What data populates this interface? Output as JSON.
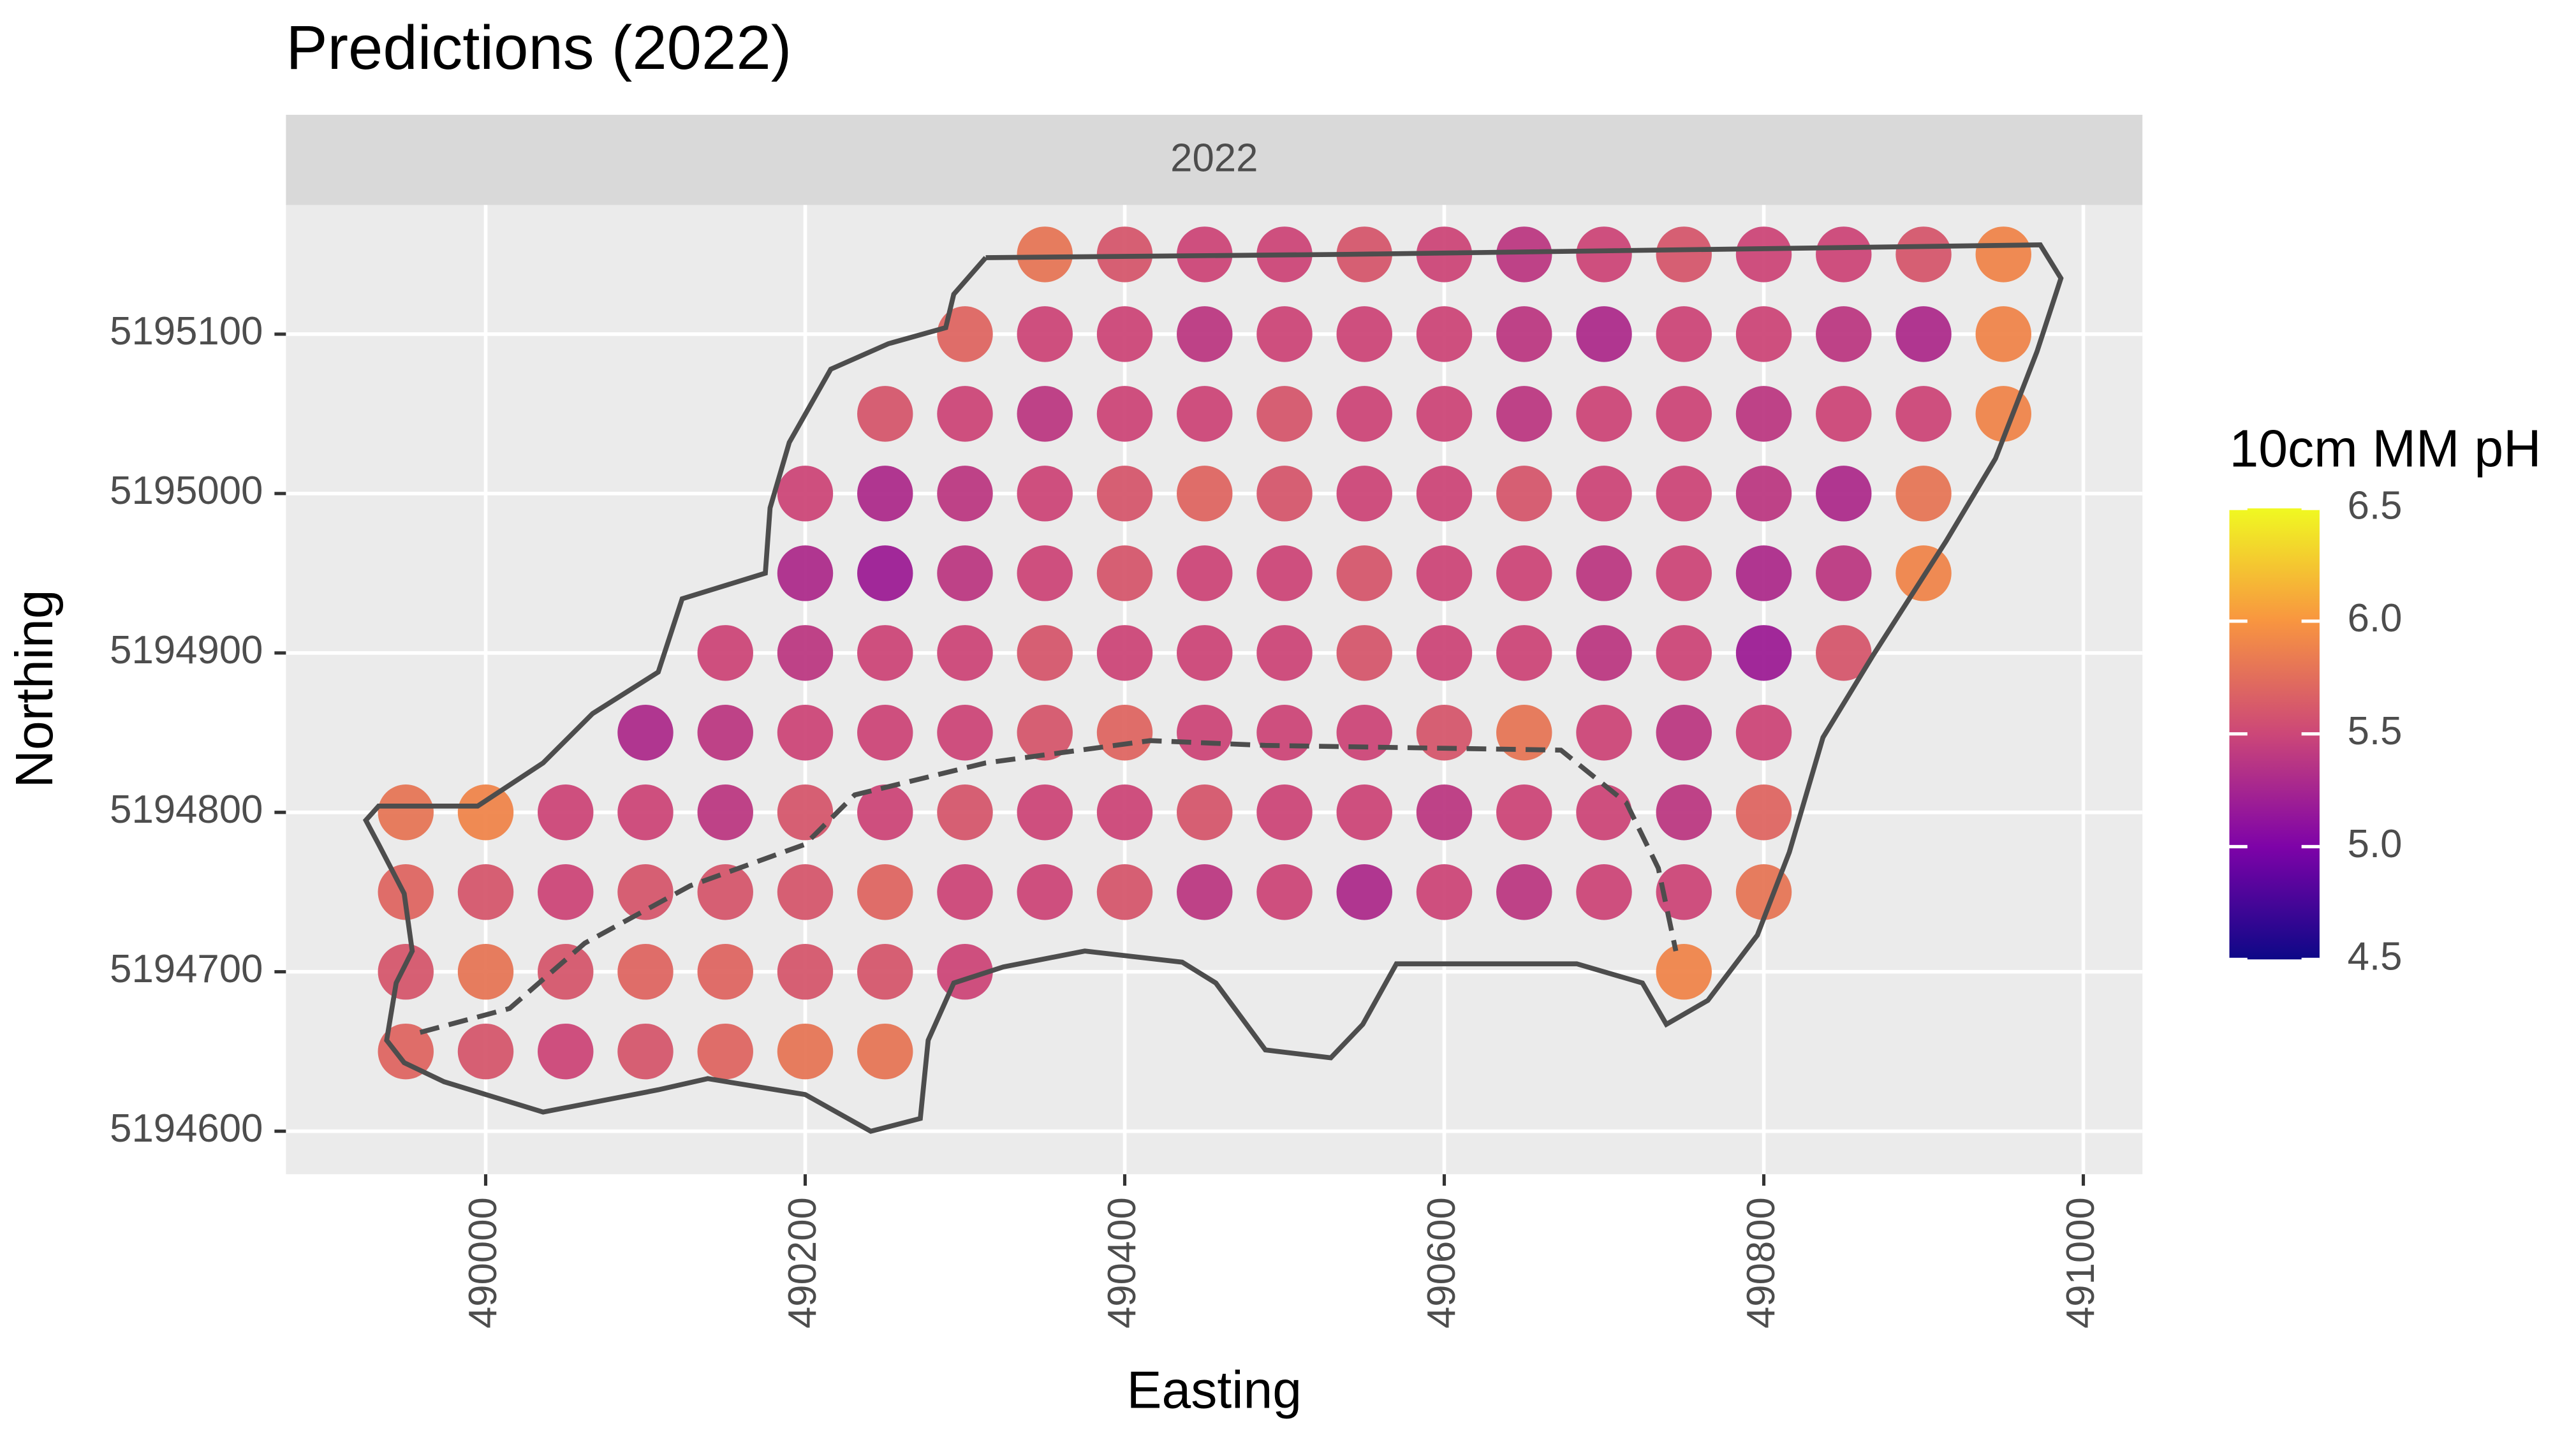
{
  "chart_data": {
    "type": "scatter",
    "title": "Predictions (2022)",
    "facet": "2022",
    "x_label": "Easting",
    "y_label": "Northing",
    "grid": true,
    "xlim": [
      489875,
      491037
    ],
    "ylim": [
      5194573,
      5195181
    ],
    "xticks": [
      490000,
      490200,
      490400,
      490600,
      490800,
      491000
    ],
    "yticks": [
      5194600,
      5194700,
      5194800,
      5194900,
      5195000,
      5195100
    ],
    "x": [
      490350,
      490400,
      490450,
      490500,
      490550,
      490600,
      490650,
      490700,
      490750,
      490800,
      490850,
      490900,
      490950,
      490300,
      490350,
      490400,
      490450,
      490500,
      490550,
      490600,
      490650,
      490700,
      490750,
      490800,
      490850,
      490900,
      490950,
      490250,
      490300,
      490350,
      490400,
      490450,
      490500,
      490550,
      490600,
      490650,
      490700,
      490750,
      490800,
      490850,
      490900,
      490950,
      490200,
      490250,
      490300,
      490350,
      490400,
      490450,
      490500,
      490550,
      490600,
      490650,
      490700,
      490750,
      490800,
      490850,
      490900,
      490200,
      490250,
      490300,
      490350,
      490400,
      490450,
      490500,
      490550,
      490600,
      490650,
      490700,
      490750,
      490800,
      490850,
      490900,
      490150,
      490200,
      490250,
      490300,
      490350,
      490400,
      490450,
      490500,
      490550,
      490600,
      490650,
      490700,
      490750,
      490800,
      490850,
      490100,
      490150,
      490200,
      490250,
      490300,
      490350,
      490400,
      490450,
      490500,
      490550,
      490600,
      490650,
      490700,
      490750,
      490800,
      489950,
      490000,
      490050,
      490100,
      490150,
      490200,
      490250,
      490300,
      490350,
      490400,
      490450,
      490500,
      490550,
      490600,
      490650,
      490700,
      490750,
      490800,
      489950,
      490000,
      490050,
      490100,
      490150,
      490200,
      490250,
      490300,
      490350,
      490400,
      490450,
      490500,
      490550,
      490600,
      490650,
      490700,
      490750,
      490800,
      489950,
      490000,
      490050,
      490100,
      490150,
      490200,
      490250,
      490300,
      490750,
      489950,
      490000,
      490050,
      490100,
      490150,
      490200,
      490250
    ],
    "y": [
      5195150,
      5195150,
      5195150,
      5195150,
      5195150,
      5195150,
      5195150,
      5195150,
      5195150,
      5195150,
      5195150,
      5195150,
      5195150,
      5195100,
      5195100,
      5195100,
      5195100,
      5195100,
      5195100,
      5195100,
      5195100,
      5195100,
      5195100,
      5195100,
      5195100,
      5195100,
      5195100,
      5195050,
      5195050,
      5195050,
      5195050,
      5195050,
      5195050,
      5195050,
      5195050,
      5195050,
      5195050,
      5195050,
      5195050,
      5195050,
      5195050,
      5195050,
      5195000,
      5195000,
      5195000,
      5195000,
      5195000,
      5195000,
      5195000,
      5195000,
      5195000,
      5195000,
      5195000,
      5195000,
      5195000,
      5195000,
      5195000,
      5194950,
      5194950,
      5194950,
      5194950,
      5194950,
      5194950,
      5194950,
      5194950,
      5194950,
      5194950,
      5194950,
      5194950,
      5194950,
      5194950,
      5194950,
      5194900,
      5194900,
      5194900,
      5194900,
      5194900,
      5194900,
      5194900,
      5194900,
      5194900,
      5194900,
      5194900,
      5194900,
      5194900,
      5194900,
      5194900,
      5194850,
      5194850,
      5194850,
      5194850,
      5194850,
      5194850,
      5194850,
      5194850,
      5194850,
      5194850,
      5194850,
      5194850,
      5194850,
      5194850,
      5194850,
      5194800,
      5194800,
      5194800,
      5194800,
      5194800,
      5194800,
      5194800,
      5194800,
      5194800,
      5194800,
      5194800,
      5194800,
      5194800,
      5194800,
      5194800,
      5194800,
      5194800,
      5194800,
      5194750,
      5194750,
      5194750,
      5194750,
      5194750,
      5194750,
      5194750,
      5194750,
      5194750,
      5194750,
      5194750,
      5194750,
      5194750,
      5194750,
      5194750,
      5194750,
      5194750,
      5194750,
      5194700,
      5194700,
      5194700,
      5194700,
      5194700,
      5194700,
      5194700,
      5194700,
      5194700,
      5194650,
      5194650,
      5194650,
      5194650,
      5194650,
      5194650,
      5194650
    ],
    "values": [
      5.8,
      5.6,
      5.5,
      5.5,
      5.6,
      5.5,
      5.4,
      5.5,
      5.6,
      5.5,
      5.5,
      5.6,
      5.9,
      5.7,
      5.5,
      5.5,
      5.4,
      5.5,
      5.5,
      5.5,
      5.4,
      5.3,
      5.5,
      5.5,
      5.4,
      5.3,
      5.9,
      5.6,
      5.5,
      5.4,
      5.5,
      5.5,
      5.6,
      5.5,
      5.5,
      5.4,
      5.5,
      5.5,
      5.4,
      5.5,
      5.5,
      5.9,
      5.5,
      5.3,
      5.4,
      5.5,
      5.6,
      5.7,
      5.6,
      5.5,
      5.5,
      5.6,
      5.5,
      5.5,
      5.4,
      5.3,
      5.8,
      5.3,
      5.2,
      5.4,
      5.5,
      5.6,
      5.5,
      5.5,
      5.6,
      5.5,
      5.5,
      5.4,
      5.5,
      5.3,
      5.4,
      5.9,
      5.5,
      5.4,
      5.5,
      5.5,
      5.6,
      5.5,
      5.5,
      5.5,
      5.6,
      5.5,
      5.5,
      5.4,
      5.5,
      5.2,
      5.6,
      5.3,
      5.4,
      5.5,
      5.5,
      5.5,
      5.6,
      5.7,
      5.5,
      5.5,
      5.5,
      5.6,
      5.8,
      5.5,
      5.4,
      5.5,
      5.8,
      5.9,
      5.5,
      5.5,
      5.4,
      5.6,
      5.5,
      5.6,
      5.5,
      5.5,
      5.6,
      5.5,
      5.5,
      5.4,
      5.5,
      5.5,
      5.4,
      5.7,
      5.7,
      5.6,
      5.5,
      5.6,
      5.6,
      5.6,
      5.7,
      5.5,
      5.5,
      5.6,
      5.4,
      5.5,
      5.3,
      5.5,
      5.4,
      5.5,
      5.5,
      5.8,
      5.6,
      5.8,
      5.6,
      5.7,
      5.7,
      5.6,
      5.6,
      5.5,
      5.9,
      5.7,
      5.6,
      5.5,
      5.6,
      5.7,
      5.8,
      5.8
    ],
    "boundary": {
      "color": "#4d4d4d",
      "x": [
        490313,
        490539,
        490973,
        490986,
        490971,
        490945,
        490914,
        490868,
        490837,
        490816,
        490796,
        490765,
        490739,
        490724,
        490683,
        490570,
        490549,
        490529,
        490488,
        490457,
        490436,
        490375,
        490324,
        490293,
        490277,
        490272,
        490241,
        490200,
        490139,
        490108,
        490036,
        489974,
        489949,
        489938,
        489944,
        489954,
        489949,
        489933,
        489925,
        489933,
        489995,
        490036,
        490067,
        490108,
        490123,
        490175,
        490178,
        490190,
        490216,
        490252,
        490288,
        490293,
        490313
      ],
      "y": [
        5195148,
        5195150,
        5195156,
        5195135,
        5195089,
        5195022,
        5194970,
        5194898,
        5194847,
        5194775,
        5194723,
        5194682,
        5194667,
        5194693,
        5194705,
        5194705,
        5194667,
        5194646,
        5194651,
        5194693,
        5194706,
        5194713,
        5194703,
        5194693,
        5194657,
        5194608,
        5194600,
        5194623,
        5194633,
        5194626,
        5194612,
        5194631,
        5194643,
        5194657,
        5194693,
        5194713,
        5194749,
        5194780,
        5194795,
        5194804,
        5194804,
        5194831,
        5194862,
        5194888,
        5194934,
        5194950,
        5194991,
        5195032,
        5195078,
        5195094,
        5195104,
        5195125,
        5195148
      ]
    },
    "divider": {
      "color": "#4d4d4d",
      "x": [
        489959,
        490015,
        490062,
        490128,
        490200,
        490231,
        490313,
        490416,
        490488,
        490673,
        490714,
        490734,
        490745
      ],
      "y": [
        5194662,
        5194677,
        5194718,
        5194754,
        5194780,
        5194811,
        5194831,
        5194845,
        5194842,
        5194839,
        5194806,
        5194765,
        5194713
      ]
    },
    "colorbar": {
      "title": "10cm MM pH",
      "lim": [
        4.5,
        6.5
      ],
      "colors": [
        "#0d0887",
        "#7e03a8",
        "#cc4778",
        "#f89540",
        "#f0f921"
      ],
      "ticks": [
        4.5,
        {
          "value": 5,
          "label": "5.0"
        },
        5.5,
        {
          "value": 6,
          "label": "6.0"
        },
        6.5
      ]
    }
  }
}
